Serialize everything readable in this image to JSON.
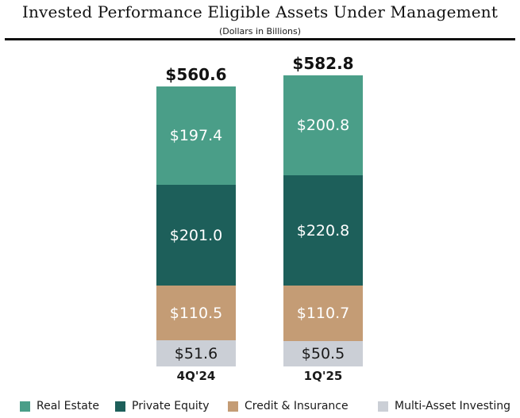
{
  "title": "Invested Performance Eligible Assets Under Management",
  "subtitle": "(Dollars in Billions)",
  "colors": {
    "real_estate": "#4A9E88",
    "private_equity": "#1D5F5A",
    "credit_insurance": "#C49C75",
    "multi_asset": "#CBCFD6",
    "text_dark": "#121212",
    "text_light": "#FFFFFF",
    "divider": "#111111"
  },
  "chart_data": {
    "type": "bar",
    "subtype": "stacked-vertical",
    "title": "Invested Performance Eligible Assets Under Management",
    "subtitle": "(Dollars in Billions)",
    "categories": [
      "4Q'24",
      "1Q'25"
    ],
    "totals": [
      560.6,
      582.8
    ],
    "total_labels": [
      "$560.6",
      "$582.8"
    ],
    "series": [
      {
        "name": "Real Estate",
        "color": "#4A9E88",
        "values": [
          197.4,
          200.8
        ],
        "labels": [
          "$197.4",
          "$200.8"
        ],
        "label_color": "#FFFFFF"
      },
      {
        "name": "Private Equity",
        "color": "#1D5F5A",
        "values": [
          201.0,
          220.8
        ],
        "labels": [
          "$201.0",
          "$220.8"
        ],
        "label_color": "#FFFFFF"
      },
      {
        "name": "Credit & Insurance",
        "color": "#C49C75",
        "values": [
          110.5,
          110.7
        ],
        "labels": [
          "$110.5",
          "$110.7"
        ],
        "label_color": "#FFFFFF"
      },
      {
        "name": "Multi-Asset Investing",
        "color": "#CBCFD6",
        "values": [
          51.6,
          50.5
        ],
        "labels": [
          "$51.6",
          "$50.5"
        ],
        "label_color": "#1A1A1A"
      }
    ],
    "stack_order_top_to_bottom": [
      "Real Estate",
      "Private Equity",
      "Credit & Insurance",
      "Multi-Asset Investing"
    ],
    "legend": [
      "Real Estate",
      "Private Equity",
      "Credit & Insurance",
      "Multi-Asset Investing"
    ],
    "legend_position": "bottom",
    "grid": false,
    "axes_shown": false
  }
}
